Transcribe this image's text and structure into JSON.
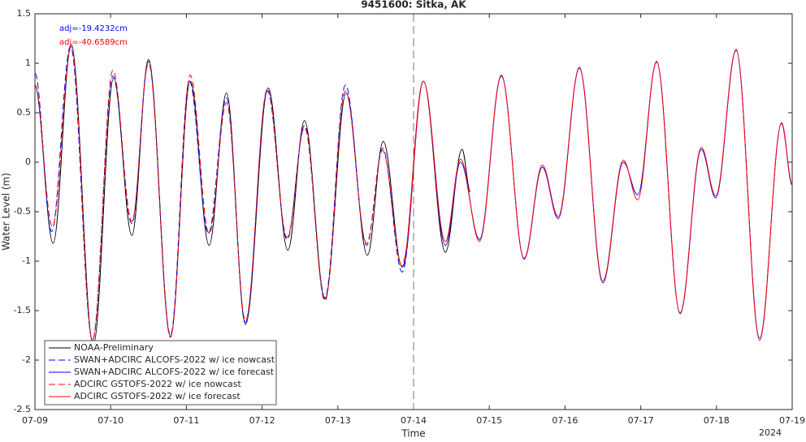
{
  "chart_data": {
    "type": "line",
    "title": "9451600: Sitka, AK",
    "xlabel": "Time",
    "ylabel": "Water Level (m)",
    "xyear": "2024",
    "xlim": [
      0,
      10
    ],
    "ylim": [
      -2.5,
      1.5
    ],
    "xticks": [
      {
        "value": 0,
        "label": "07-09"
      },
      {
        "value": 1,
        "label": "07-10"
      },
      {
        "value": 2,
        "label": "07-11"
      },
      {
        "value": 3,
        "label": "07-12"
      },
      {
        "value": 4,
        "label": "07-13"
      },
      {
        "value": 5,
        "label": "07-14"
      },
      {
        "value": 6,
        "label": "07-15"
      },
      {
        "value": 7,
        "label": "07-16"
      },
      {
        "value": 8,
        "label": "07-17"
      },
      {
        "value": 9,
        "label": "07-18"
      },
      {
        "value": 10,
        "label": "07-19"
      }
    ],
    "yticks": [
      1.5,
      1,
      0.5,
      0,
      -0.5,
      -1,
      -1.5,
      -2,
      -2.5
    ],
    "grid": false,
    "legend": "lower left",
    "vline_x": 5,
    "annotations": [
      {
        "text": "adj=-19.4232cm",
        "color": "#0000ff"
      },
      {
        "text": "adj=-40.6589cm",
        "color": "#ff0000"
      }
    ],
    "series": [
      {
        "name": "NOAA-Preliminary",
        "color": "#000000",
        "linestyle": "solid",
        "x": [
          0,
          0.24,
          0.48,
          0.77,
          1.04,
          1.28,
          1.5,
          1.79,
          2.05,
          2.3,
          2.53,
          2.78,
          3.08,
          3.34,
          3.56,
          3.83,
          4.11,
          4.39,
          4.6,
          4.85,
          5.13,
          5.42,
          5.64,
          5.75
        ],
        "values": [
          0.77,
          -0.82,
          1.19,
          -1.85,
          0.85,
          -0.74,
          1.04,
          -1.76,
          0.82,
          -0.84,
          0.7,
          -1.64,
          0.75,
          -0.89,
          0.42,
          -1.38,
          0.7,
          -0.94,
          0.21,
          -1.06,
          0.82,
          -0.91,
          0.13,
          -0.3
        ]
      },
      {
        "name": "SWAN+ADCIRC ALCOFS-2022 w/ ice nowcast",
        "color": "#0000ff",
        "linestyle": "dashed",
        "x": [
          0,
          0.22,
          0.47,
          0.76,
          1.03,
          1.28,
          1.5,
          1.79,
          2.04,
          2.29,
          2.53,
          2.78,
          3.07,
          3.33,
          3.56,
          3.83,
          4.1,
          4.38,
          4.59,
          4.85,
          5.13
        ],
        "values": [
          0.9,
          -0.7,
          1.17,
          -1.8,
          0.87,
          -0.62,
          1.02,
          -1.75,
          0.82,
          -0.72,
          0.65,
          -1.62,
          0.72,
          -0.78,
          0.37,
          -1.37,
          0.78,
          -0.84,
          0.14,
          -1.11,
          0.82
        ]
      },
      {
        "name": "SWAN+ADCIRC ALCOFS-2022 w/ ice forecast",
        "color": "#0000ff",
        "linestyle": "solid",
        "x": [
          4.86,
          5.13,
          5.42,
          5.62,
          5.87,
          6.16,
          6.46,
          6.7,
          6.91,
          7.19,
          7.5,
          7.77,
          7.96,
          8.21,
          8.52,
          8.8,
          8.99,
          9.26,
          9.57,
          9.86,
          10
        ],
        "values": [
          -1.05,
          0.82,
          -0.84,
          0.0,
          -0.78,
          0.88,
          -0.98,
          -0.05,
          -0.57,
          0.95,
          -1.22,
          0.0,
          -0.33,
          1.01,
          -1.53,
          0.13,
          -0.36,
          1.13,
          -1.78,
          0.39,
          -0.23
        ]
      },
      {
        "name": "ADCIRC GSTOFS-2022 w/ ice nowcast",
        "color": "#ff0000",
        "linestyle": "dashed",
        "x": [
          0,
          0.23,
          0.48,
          0.76,
          1.03,
          1.28,
          1.5,
          1.79,
          2.05,
          2.3,
          2.53,
          2.78,
          3.07,
          3.33,
          3.56,
          3.83,
          4.1,
          4.38,
          4.59,
          4.85,
          5.13
        ],
        "values": [
          0.78,
          -0.65,
          1.17,
          -1.8,
          0.93,
          -0.6,
          1.0,
          -1.77,
          0.88,
          -0.72,
          0.6,
          -1.6,
          0.74,
          -0.76,
          0.35,
          -1.4,
          0.72,
          -0.82,
          0.12,
          -1.05,
          0.82
        ]
      },
      {
        "name": "ADCIRC GSTOFS-2022 w/ ice forecast",
        "color": "#ff0000",
        "linestyle": "solid",
        "x": [
          4.86,
          5.13,
          5.42,
          5.62,
          5.87,
          6.16,
          6.46,
          6.7,
          6.91,
          7.19,
          7.5,
          7.77,
          7.96,
          8.21,
          8.52,
          8.8,
          8.99,
          9.26,
          9.57,
          9.86,
          10
        ],
        "values": [
          -1.0,
          0.82,
          -0.8,
          0.03,
          -0.8,
          0.87,
          -0.97,
          -0.03,
          -0.55,
          0.96,
          -1.2,
          0.02,
          -0.38,
          1.02,
          -1.52,
          0.15,
          -0.34,
          1.14,
          -1.8,
          0.4,
          -0.22
        ]
      }
    ]
  }
}
